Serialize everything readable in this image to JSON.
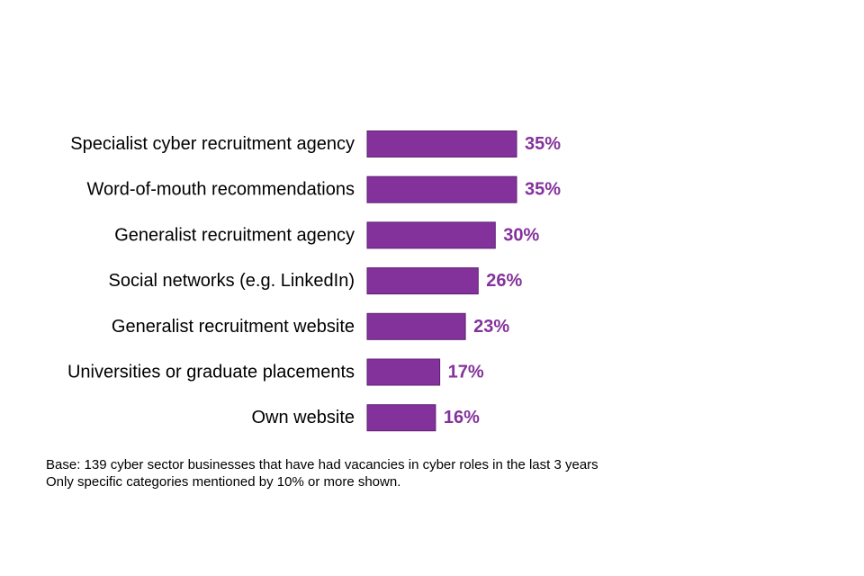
{
  "chart_data": {
    "type": "bar",
    "orientation": "horizontal",
    "title": "",
    "xlabel": "",
    "ylabel": "",
    "categories": [
      "Specialist cyber recruitment agency",
      "Word-of-mouth recommendations",
      "Generalist recruitment agency",
      "Social networks (e.g. LinkedIn)",
      "Generalist recruitment website",
      "Universities or graduate placements",
      "Own website"
    ],
    "values": [
      35,
      35,
      30,
      26,
      23,
      17,
      16
    ],
    "value_labels": [
      "35%",
      "35%",
      "30%",
      "26%",
      "23%",
      "17%",
      "16%"
    ],
    "value_unit": "%",
    "xlim": [
      0,
      100
    ],
    "grid": false,
    "legend": "none",
    "colors": {
      "bar_fill": "#84329b",
      "bar_stroke": "#5e1f73",
      "value_text": "#84329b"
    }
  },
  "notes": {
    "base": "Base: 139 cyber sector businesses that have had vacancies in cyber roles in the last 3 years",
    "filter": "Only specific categories mentioned by 10% or more shown."
  }
}
